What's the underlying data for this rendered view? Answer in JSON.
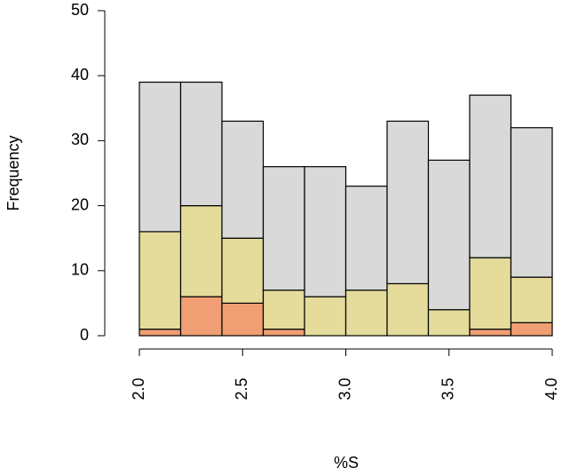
{
  "chart_data": {
    "type": "histogram",
    "xlabel": "%S",
    "ylabel": "Frequency",
    "bins": [
      2.0,
      2.2,
      2.4,
      2.6,
      2.8,
      3.0,
      3.2,
      3.4,
      3.6,
      3.8,
      4.0
    ],
    "series": [
      {
        "color": "#ef9f73",
        "values": [
          1,
          6,
          5,
          1,
          0,
          0,
          0,
          0,
          1,
          2
        ]
      },
      {
        "color": "#e5dc9c",
        "values": [
          15,
          14,
          10,
          6,
          6,
          7,
          8,
          4,
          11,
          7
        ]
      },
      {
        "color": "#d9d9d9",
        "values": [
          23,
          19,
          18,
          19,
          20,
          16,
          25,
          23,
          25,
          23
        ]
      }
    ],
    "xlim": [
      2,
      4
    ],
    "xticks": [
      {
        "value": 2,
        "label": "2.0"
      },
      {
        "value": 2.5,
        "label": "2.5"
      },
      {
        "value": 3,
        "label": "3.0"
      },
      {
        "value": 3.5,
        "label": "3.5"
      },
      {
        "value": 4,
        "label": "4.0"
      }
    ],
    "ylim": [
      0,
      50
    ],
    "yticks": [
      0,
      10,
      20,
      30,
      40,
      50
    ]
  }
}
